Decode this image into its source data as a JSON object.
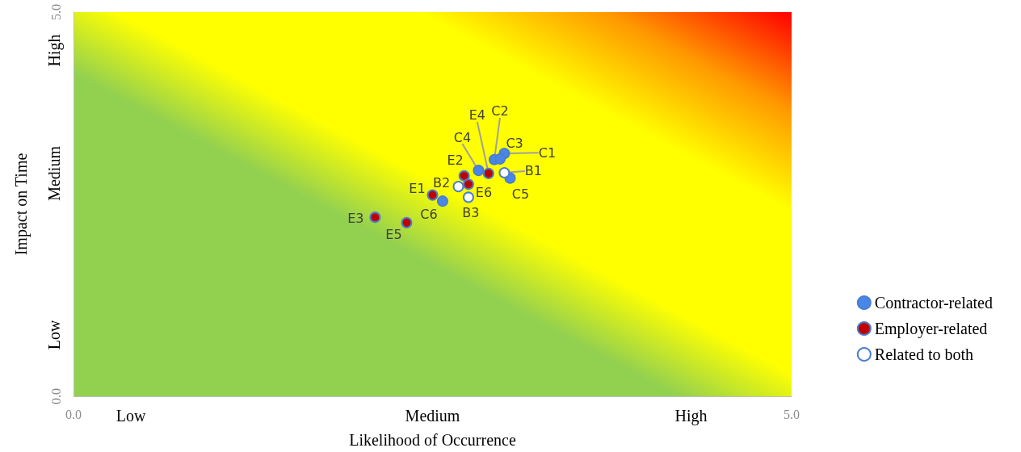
{
  "chart_data": {
    "type": "scatter",
    "xlabel": "Likelihood of Occurrence",
    "ylabel": "Impact on Time",
    "xlim": [
      0,
      5
    ],
    "ylim": [
      0,
      5
    ],
    "xticks": [
      {
        "value": 0,
        "label": "0.0"
      },
      {
        "value": 0.4,
        "label": "Low"
      },
      {
        "value": 2.5,
        "label": "Medium"
      },
      {
        "value": 4.3,
        "label": "High"
      },
      {
        "value": 5,
        "label": "5.0"
      }
    ],
    "yticks": [
      {
        "value": 0,
        "label": "0.0"
      },
      {
        "value": 0.8,
        "label": "Low"
      },
      {
        "value": 2.9,
        "label": "Medium"
      },
      {
        "value": 4.5,
        "label": "High"
      },
      {
        "value": 5,
        "label": "5.0"
      }
    ],
    "marker": "circle",
    "legend": "right",
    "series": [
      {
        "name": "Contractor-related",
        "color": "#4a86e8",
        "x": [
          3.0,
          2.93,
          2.97,
          2.82,
          3.04,
          2.57
        ],
        "values": [
          3.16,
          3.08,
          3.09,
          2.94,
          2.84,
          2.54
        ],
        "value_labels": [
          "C1",
          "C2",
          "C3",
          "C4",
          "C5",
          "C6"
        ]
      },
      {
        "name": "Employer-related",
        "color": "#c00000",
        "x": [
          2.5,
          2.72,
          2.1,
          2.89,
          2.32,
          2.75
        ],
        "values": [
          2.62,
          2.87,
          2.33,
          2.9,
          2.26,
          2.76
        ],
        "value_labels": [
          "E1",
          "E2",
          "E3",
          "E4",
          "E5",
          "E6"
        ]
      },
      {
        "name": "Related to both",
        "color": "#ffffff",
        "x": [
          3.0,
          2.68,
          2.75
        ],
        "values": [
          2.91,
          2.73,
          2.59
        ],
        "value_labels": [
          "B1",
          "B2",
          "B3"
        ]
      }
    ]
  }
}
